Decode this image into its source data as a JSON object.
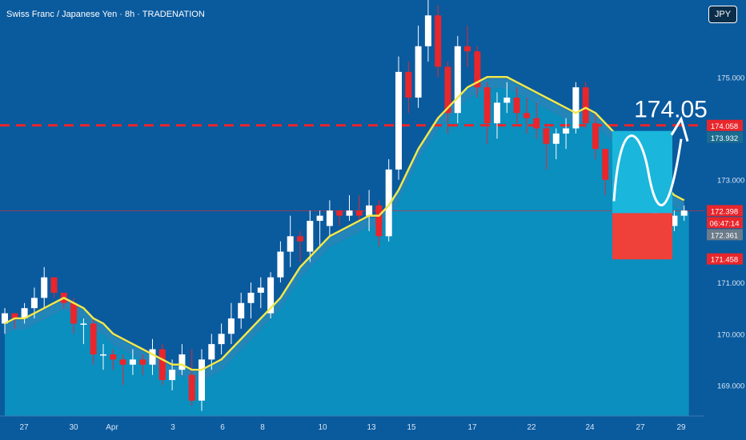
{
  "header": {
    "title": "Swiss Franc / Japanese Yen · 8h · TRADENATION",
    "currency_button": "JPY"
  },
  "colors": {
    "background": "#0a5a9e",
    "area_fill": "#0a8fbf",
    "area_band": "#3aa9cf",
    "bull_candle": "#ffffff",
    "bear_candle": "#e8262b",
    "ema_line": "#f2e84b",
    "target_box": "#1ab6dc",
    "stop_box": "#f0403a",
    "dashed_level": "#e8262b"
  },
  "annotation": {
    "target_label": "174.05"
  },
  "chart_data": {
    "type": "candlestick",
    "title": "Swiss Franc / Japanese Yen · 8h · TRADENATION",
    "ylim": [
      168.4,
      176.5
    ],
    "y_ticks": [
      "175.000",
      "173.000",
      "171.000",
      "170.000",
      "169.000"
    ],
    "y_tick_values": [
      175.0,
      173.0,
      171.0,
      170.0,
      169.0
    ],
    "x_tick_labels": [
      "27",
      "30",
      "Apr",
      "3",
      "6",
      "8",
      "10",
      "13",
      "15",
      "17",
      "22",
      "24",
      "27",
      "29"
    ],
    "price_labels": [
      {
        "text": "174.058",
        "value": 174.058,
        "color": "#e8262b"
      },
      {
        "text": "173.932",
        "value": 173.932,
        "color": "#1a6b8f"
      },
      {
        "text": "172.398",
        "value": 172.398,
        "color": "#e8262b"
      },
      {
        "text": "06:47:14",
        "value": 172.25,
        "color": "#e8262b"
      },
      {
        "text": "172.361",
        "value": 172.361,
        "color": "#6b7b8a"
      },
      {
        "text": "171.458",
        "value": 171.458,
        "color": "#e8262b"
      }
    ],
    "levels": {
      "dashed_resistance": 174.06,
      "current_price": 172.398
    },
    "trade_setup": {
      "entry": 172.35,
      "target": 173.95,
      "stop": 171.45
    },
    "series": [
      {
        "name": "",
        "candles": [
          [
            170.2,
            170.5,
            170.0,
            170.4
          ],
          [
            170.4,
            170.4,
            170.1,
            170.3
          ],
          [
            170.3,
            170.6,
            170.2,
            170.5
          ],
          [
            170.5,
            170.9,
            170.3,
            170.7
          ],
          [
            170.7,
            171.3,
            170.5,
            171.1
          ],
          [
            171.1,
            171.1,
            170.7,
            170.8
          ],
          [
            170.8,
            170.8,
            170.5,
            170.6
          ],
          [
            170.6,
            170.7,
            170.0,
            170.2
          ],
          [
            170.2,
            170.3,
            169.8,
            170.2
          ],
          [
            170.2,
            170.3,
            169.4,
            169.6
          ],
          [
            169.6,
            169.8,
            169.3,
            169.6
          ],
          [
            169.6,
            169.7,
            169.3,
            169.5
          ],
          [
            169.5,
            169.6,
            169.0,
            169.4
          ],
          [
            169.4,
            169.7,
            169.2,
            169.5
          ],
          [
            169.5,
            169.6,
            169.2,
            169.4
          ],
          [
            169.4,
            169.9,
            169.2,
            169.7
          ],
          [
            169.7,
            169.8,
            169.0,
            169.1
          ],
          [
            169.1,
            169.5,
            168.9,
            169.3
          ],
          [
            169.3,
            169.8,
            169.2,
            169.6
          ],
          [
            169.2,
            169.7,
            168.6,
            168.7
          ],
          [
            168.7,
            169.7,
            168.5,
            169.5
          ],
          [
            169.5,
            170.0,
            169.3,
            169.8
          ],
          [
            169.8,
            170.2,
            169.6,
            170.0
          ],
          [
            170.0,
            170.6,
            169.8,
            170.3
          ],
          [
            170.3,
            170.8,
            170.1,
            170.6
          ],
          [
            170.6,
            171.0,
            170.3,
            170.8
          ],
          [
            170.8,
            171.1,
            170.5,
            170.9
          ],
          [
            170.4,
            171.2,
            170.3,
            171.1
          ],
          [
            171.1,
            171.8,
            171.0,
            171.6
          ],
          [
            171.6,
            172.3,
            171.3,
            171.9
          ],
          [
            171.9,
            172.0,
            171.4,
            171.8
          ],
          [
            171.6,
            172.4,
            171.4,
            172.2
          ],
          [
            172.2,
            172.4,
            171.7,
            172.3
          ],
          [
            172.1,
            172.6,
            171.9,
            172.4
          ],
          [
            172.4,
            172.4,
            172.1,
            172.3
          ],
          [
            172.3,
            172.7,
            172.2,
            172.4
          ],
          [
            172.4,
            172.7,
            172.2,
            172.3
          ],
          [
            172.3,
            172.8,
            172.0,
            172.5
          ],
          [
            172.5,
            172.6,
            171.7,
            171.9
          ],
          [
            171.9,
            173.4,
            171.8,
            173.2
          ],
          [
            173.2,
            175.4,
            173.0,
            175.1
          ],
          [
            175.1,
            175.3,
            174.3,
            174.6
          ],
          [
            174.6,
            176.0,
            174.4,
            175.6
          ],
          [
            175.6,
            176.5,
            175.3,
            176.2
          ],
          [
            176.2,
            176.4,
            175.0,
            175.2
          ],
          [
            175.2,
            175.3,
            173.9,
            174.3
          ],
          [
            174.3,
            175.8,
            174.1,
            175.6
          ],
          [
            175.6,
            176.0,
            175.2,
            175.5
          ],
          [
            175.5,
            175.6,
            174.6,
            174.8
          ],
          [
            174.8,
            174.9,
            173.7,
            174.1
          ],
          [
            174.1,
            174.7,
            173.8,
            174.5
          ],
          [
            174.5,
            174.9,
            174.3,
            174.6
          ],
          [
            174.6,
            174.8,
            174.1,
            174.3
          ],
          [
            174.3,
            174.6,
            173.9,
            174.2
          ],
          [
            174.2,
            174.5,
            173.8,
            174.0
          ],
          [
            174.0,
            174.1,
            173.2,
            173.7
          ],
          [
            173.7,
            174.0,
            173.4,
            173.9
          ],
          [
            173.9,
            174.2,
            173.6,
            174.0
          ],
          [
            174.0,
            174.9,
            173.9,
            174.8
          ],
          [
            174.8,
            174.9,
            174.0,
            174.1
          ],
          [
            174.1,
            174.3,
            173.4,
            173.6
          ],
          [
            173.6,
            173.6,
            172.7,
            173.0
          ],
          [
            173.0,
            173.3,
            172.8,
            172.9
          ],
          [
            172.9,
            173.0,
            172.5,
            172.8
          ],
          [
            172.8,
            172.9,
            172.2,
            172.4
          ],
          [
            172.4,
            172.6,
            172.1,
            172.2
          ],
          [
            172.2,
            172.6,
            172.0,
            172.5
          ],
          [
            172.5,
            172.6,
            171.9,
            172.1
          ],
          [
            172.1,
            172.4,
            172.0,
            172.3
          ],
          [
            172.3,
            172.5,
            172.2,
            172.4
          ]
        ]
      },
      {
        "name": "",
        "ema": [
          170.2,
          170.3,
          170.3,
          170.4,
          170.5,
          170.6,
          170.7,
          170.6,
          170.5,
          170.3,
          170.2,
          170.0,
          169.9,
          169.8,
          169.7,
          169.6,
          169.5,
          169.4,
          169.4,
          169.3,
          169.3,
          169.4,
          169.5,
          169.7,
          169.9,
          170.1,
          170.3,
          170.5,
          170.7,
          171.0,
          171.3,
          171.5,
          171.7,
          171.9,
          172.0,
          172.1,
          172.2,
          172.3,
          172.3,
          172.5,
          172.8,
          173.2,
          173.6,
          173.9,
          174.2,
          174.4,
          174.6,
          174.8,
          174.9,
          175.0,
          175.0,
          175.0,
          174.9,
          174.8,
          174.7,
          174.6,
          174.5,
          174.4,
          174.3,
          174.4,
          174.3,
          174.1,
          173.9,
          173.7,
          173.5,
          173.3,
          173.1,
          172.9,
          172.7,
          172.6
        ]
      }
    ]
  }
}
